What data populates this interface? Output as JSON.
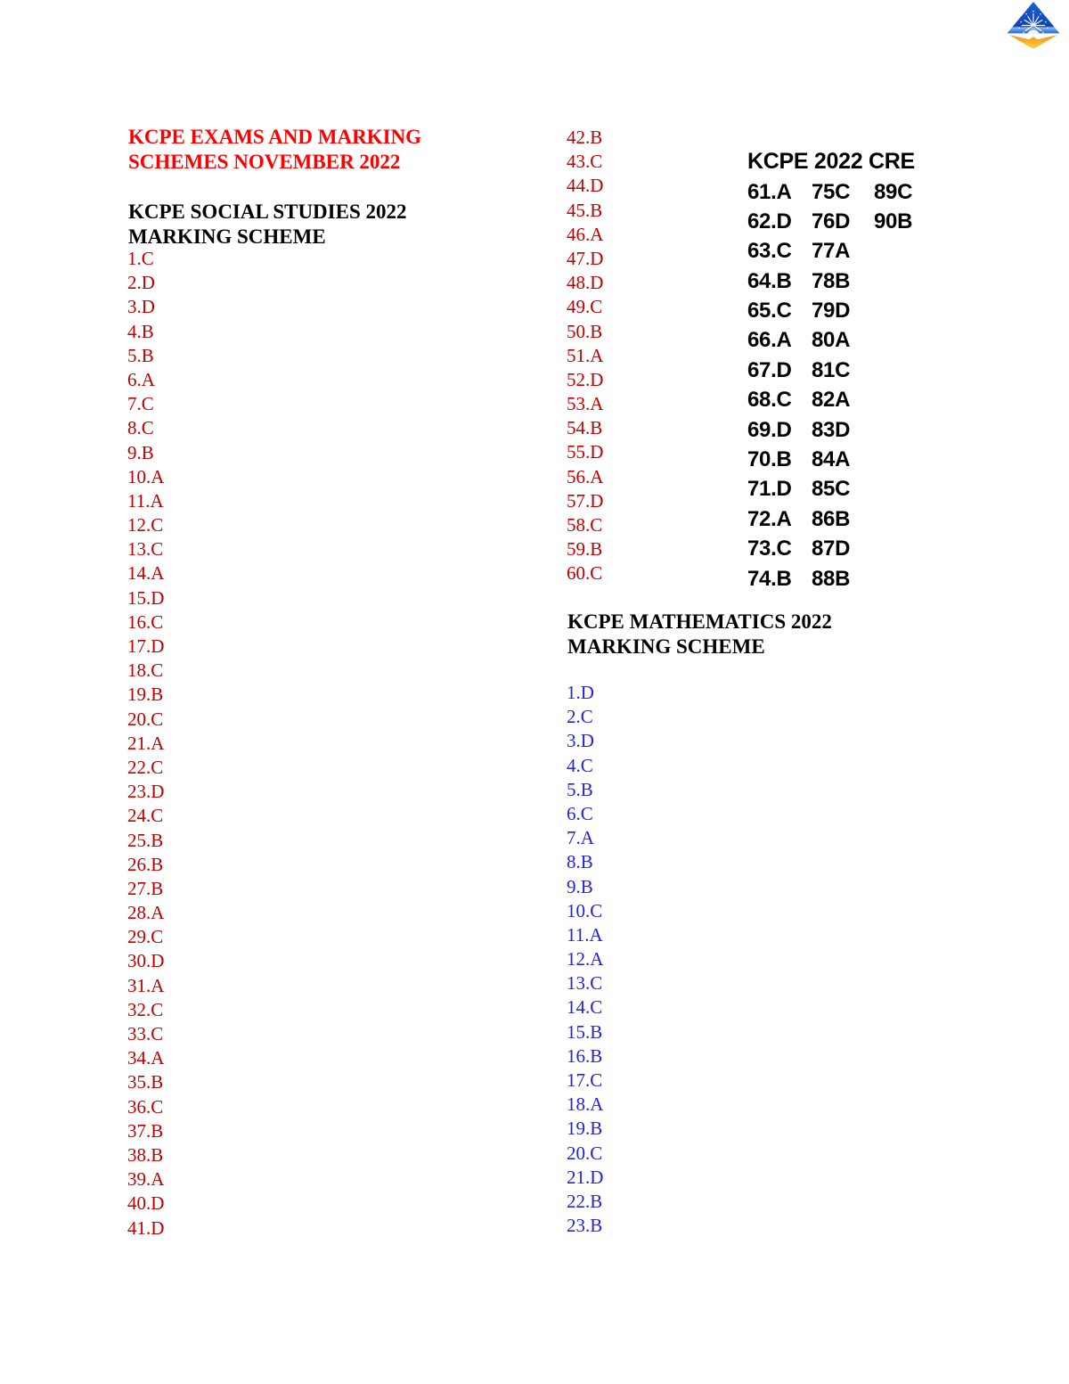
{
  "document": {
    "title_line1": "KCPE EXAMS AND MARKING",
    "title_line2": "SCHEMES NOVEMBER 2022"
  },
  "social_studies": {
    "heading_line1": "KCPE SOCIAL STUDIES 2022",
    "heading_line2": "MARKING SCHEME",
    "answers_1_41": [
      "1.C",
      "2.D",
      "3.D",
      "4.B",
      "5.B",
      "6.A",
      "7.C",
      "8.C",
      "9.B",
      "10.A",
      "11.A",
      "12.C",
      "13.C",
      "14.A",
      "15.D",
      "16.C",
      "17.D",
      "18.C",
      "19.B",
      "20.C",
      "21.A",
      "22.C",
      "23.D",
      "24.C",
      "25.B",
      "26.B",
      "27.B",
      "28.A",
      "29.C",
      "30.D",
      "31.A",
      "32.C",
      "33.C",
      "34.A",
      "35.B",
      "36.C",
      "37.B",
      "38.B",
      "39.A",
      "40.D",
      "41.D"
    ],
    "answers_42_60": [
      "42.B",
      "43.C",
      "44.D",
      "45.B",
      "46.A",
      "47.D",
      "48.D",
      "49.C",
      "50.B",
      "51.A",
      "52.D",
      "53.A",
      "54.B",
      "55.D",
      "56.A",
      "57.D",
      "58.C",
      "59.B",
      "60.C"
    ]
  },
  "mathematics": {
    "heading_line1": "KCPE MATHEMATICS 2022",
    "heading_line2": "MARKING SCHEME",
    "answers": [
      "1.D",
      "2.C",
      "3.D",
      "4.C",
      "5.B",
      "6.C",
      "7.A",
      "8.B",
      "9.B",
      "10.C",
      "11.A",
      "12.A",
      "13.C",
      "14.C",
      "15.B",
      "16.B",
      "17.C",
      "18.A",
      "19.B",
      "20.C",
      "21.D",
      "22.B",
      "23.B"
    ]
  },
  "cre": {
    "heading": "KCPE 2022 CRE",
    "rows": [
      [
        "61.A",
        "75C",
        "89C"
      ],
      [
        "62.D",
        "76D",
        "90B"
      ],
      [
        "63.C",
        "77A",
        ""
      ],
      [
        "64.B",
        "78B",
        ""
      ],
      [
        "65.C",
        "79D",
        ""
      ],
      [
        "66.A",
        "80A",
        ""
      ],
      [
        "67.D",
        "81C",
        ""
      ],
      [
        "68.C",
        "82A",
        ""
      ],
      [
        "69.D",
        "83D",
        ""
      ],
      [
        "70.B",
        "84A",
        ""
      ],
      [
        "71.D",
        "85C",
        ""
      ],
      [
        "72.A",
        "86B",
        ""
      ],
      [
        "73.C",
        "87D",
        ""
      ],
      [
        "74.B",
        "88B",
        ""
      ]
    ]
  },
  "icons": {
    "logo": "mountain-starburst-book-logo"
  },
  "colors": {
    "title_red": "#FF0000",
    "answer_red": "#C00000",
    "answer_blue": "#2323DC",
    "heading_black": "#000000",
    "logo_blue_top": "#1E63D6",
    "logo_blue_deep": "#0B44B0",
    "logo_blue_light": "#8FB9EC",
    "logo_orange": "#F68E12",
    "logo_yellow": "#FFD33C"
  }
}
